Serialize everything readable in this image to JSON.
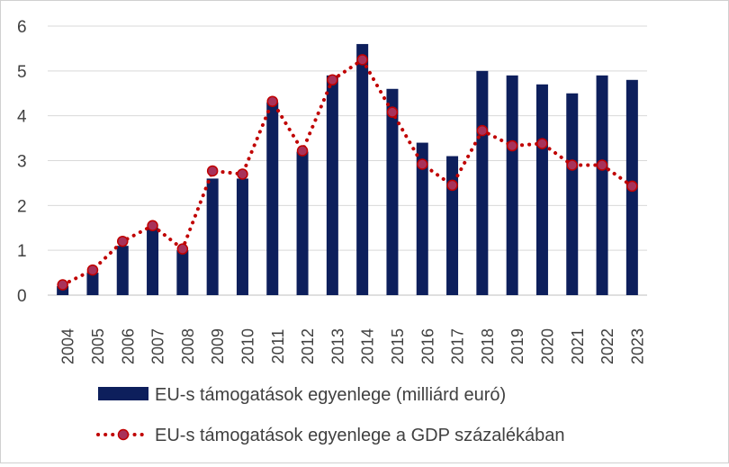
{
  "chart_data": {
    "type": "bar",
    "categories": [
      "2004",
      "2005",
      "2006",
      "2007",
      "2008",
      "2009",
      "2010",
      "2011",
      "2012",
      "2013",
      "2014",
      "2015",
      "2016",
      "2017",
      "2018",
      "2019",
      "2020",
      "2021",
      "2022",
      "2023"
    ],
    "ylim": [
      0,
      6
    ],
    "yticks": [
      "0",
      "1",
      "2",
      "3",
      "4",
      "5",
      "6"
    ],
    "grid": true,
    "legend_position": "bottom",
    "series": [
      {
        "name": "EU-s támogatások egyenlege (milliárd euró)",
        "type": "bar",
        "color": "#0d1f5c",
        "values": [
          0.2,
          0.5,
          1.1,
          1.5,
          1.0,
          2.6,
          2.6,
          4.3,
          3.2,
          4.9,
          5.6,
          4.6,
          3.4,
          3.1,
          5.0,
          4.9,
          4.7,
          4.5,
          4.9,
          4.8
        ]
      },
      {
        "name": "EU-s támogatások egyenlege a GDP százalékában",
        "type": "line",
        "style": "dotted",
        "color": "#c00000",
        "marker_color": "#a8325a",
        "values": [
          0.23,
          0.56,
          1.2,
          1.55,
          1.03,
          2.77,
          2.7,
          4.32,
          3.22,
          4.8,
          5.25,
          4.08,
          2.92,
          2.45,
          3.67,
          3.33,
          3.38,
          2.9,
          2.9,
          2.43
        ]
      }
    ]
  }
}
